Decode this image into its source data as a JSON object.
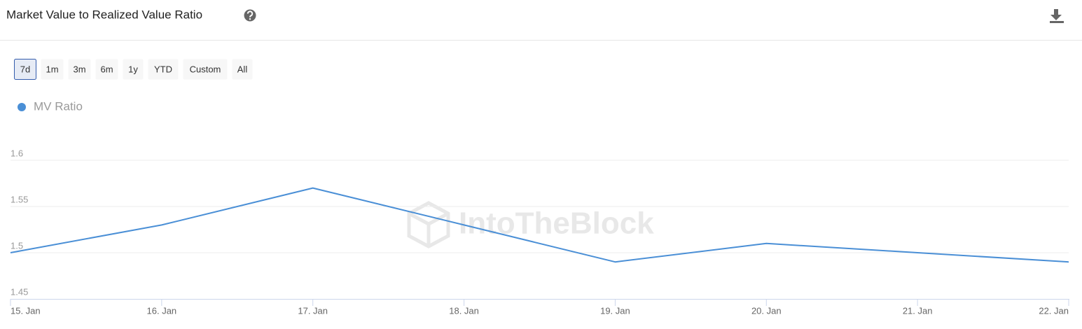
{
  "chart_data": {
    "type": "line",
    "title": "Market Value to Realized Value Ratio",
    "categories": [
      "15. Jan",
      "16. Jan",
      "17. Jan",
      "18. Jan",
      "19. Jan",
      "20. Jan",
      "21. Jan",
      "22. Jan"
    ],
    "series": [
      {
        "name": "MV Ratio",
        "color": "#4a8fd6",
        "values": [
          1.5,
          1.53,
          1.57,
          1.53,
          1.49,
          1.51,
          1.5,
          1.49
        ]
      }
    ],
    "ylim": [
      1.45,
      1.6
    ],
    "yticks": [
      1.45,
      1.5,
      1.55,
      1.6
    ],
    "grid": true,
    "legend": "top-left"
  },
  "toolbar": {
    "buttons": [
      "7d",
      "1m",
      "3m",
      "6m",
      "1y",
      "YTD",
      "Custom",
      "All"
    ],
    "selected": "7d"
  },
  "watermark": "IntoTheBlock"
}
